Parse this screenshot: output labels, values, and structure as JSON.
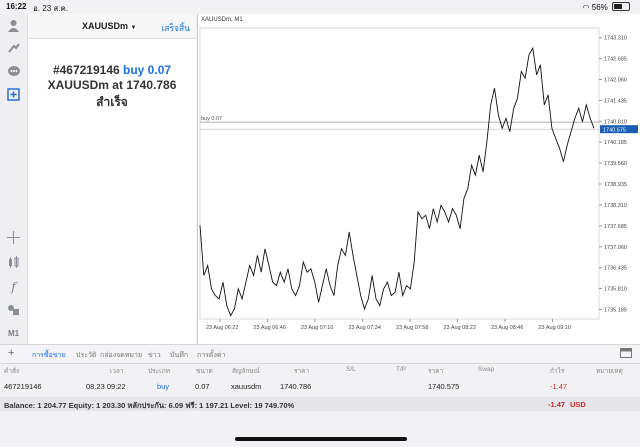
{
  "status_bar": {
    "time": "16:22",
    "date": "อ. 23 ส.ค.",
    "battery": "56%"
  },
  "panel": {
    "symbol": "XAUUSDm",
    "done_label": "เสร็จสิ้น",
    "order_prefix": "#467219146 ",
    "order_action": "buy 0.07",
    "line2_prefix": "XAUUSDm at ",
    "line2_price": "1740.786",
    "line3": "สำเร็จ"
  },
  "left_bar": {
    "timeframe": "M1"
  },
  "chart": {
    "title": "XAUUSDm, M1",
    "order_line_label": "buy 0.07",
    "current_price_label": "1740.575",
    "y_ticks": [
      "1743.310",
      "1742.685",
      "1742.060",
      "1741.435",
      "1740.810",
      "1740.185",
      "1739.560",
      "1738.935",
      "1738.310",
      "1737.685",
      "1737.060",
      "1736.435",
      "1735.810",
      "1735.185"
    ],
    "x_ticks": [
      "23 Aug 06:22",
      "23 Aug 06:46",
      "23 Aug 07:10",
      "23 Aug 07:34",
      "23 Aug 07:58",
      "23 Aug 08:22",
      "23 Aug 08:46",
      "23 Aug 09:10"
    ]
  },
  "chart_data": {
    "type": "line",
    "title": "XAUUSDm, M1",
    "ylim": [
      1734.9,
      1743.6
    ],
    "series": [
      {
        "values": [
          1737.7,
          1736.2,
          1736.5,
          1735.8,
          1735.6,
          1735.5,
          1736.0,
          1735.3,
          1735.0,
          1735.2,
          1735.8,
          1735.5,
          1736.0,
          1736.5,
          1736.2,
          1736.8,
          1736.3,
          1737.0,
          1736.5,
          1736.0,
          1735.9,
          1736.3,
          1736.0,
          1736.4,
          1735.8,
          1735.6,
          1735.9,
          1736.6,
          1736.3,
          1736.4,
          1736.0,
          1735.4,
          1735.9,
          1736.4,
          1735.9,
          1735.6,
          1736.5,
          1737.0,
          1736.8,
          1737.5,
          1736.8,
          1736.2,
          1735.6,
          1735.2,
          1735.5,
          1736.2,
          1735.5,
          1735.3,
          1735.8,
          1736.0,
          1735.6,
          1735.7,
          1736.3,
          1735.6,
          1735.9,
          1735.8,
          1736.6,
          1738.1,
          1737.9,
          1738.0,
          1737.6,
          1738.2,
          1737.8,
          1738.3,
          1738.1,
          1737.8,
          1738.2,
          1738.0,
          1737.6,
          1738.5,
          1738.8,
          1739.5,
          1739.2,
          1739.8,
          1739.3,
          1740.2,
          1741.3,
          1741.8,
          1741.0,
          1740.6,
          1740.9,
          1740.5,
          1741.2,
          1741.5,
          1742.3,
          1742.1,
          1742.8,
          1743.0,
          1742.2,
          1742.5,
          1741.3,
          1741.6,
          1740.6,
          1740.3,
          1740.0,
          1739.6,
          1740.1,
          1740.5,
          1740.9,
          1741.2,
          1740.8,
          1741.3,
          1740.9,
          1740.6
        ]
      }
    ],
    "y_ticks": [
      1743.31,
      1742.685,
      1742.06,
      1741.435,
      1740.81,
      1740.185,
      1739.56,
      1738.935,
      1738.31,
      1737.685,
      1737.06,
      1736.435,
      1735.81,
      1735.185
    ],
    "x_tick_labels": [
      "23 Aug 06:22",
      "23 Aug 06:46",
      "23 Aug 07:10",
      "23 Aug 07:34",
      "23 Aug 07:58",
      "23 Aug 08:22",
      "23 Aug 08:46",
      "23 Aug 09:10"
    ],
    "order_line": {
      "label": "buy 0.07",
      "price": 1740.786
    },
    "current_price": 1740.575,
    "grid": false
  },
  "toolbar": {
    "tabs": [
      "การซื้อขาย",
      "ประวัติ",
      "กล่องจดหมาย",
      "ข่าว",
      "บันทึก",
      "การตั้งค่า"
    ]
  },
  "table": {
    "headers": [
      "คำสั่ง",
      "เวลา",
      "ประเภท",
      "ขนาด",
      "สัญลักษณ์",
      "ราคา",
      "S/L",
      "T/P",
      "ราคา",
      "Swap",
      "กำไร",
      "หมายเหตุ"
    ],
    "row": {
      "ticket": "467219146",
      "time": "08.23 09:22",
      "type": "buy",
      "volume": "0.07",
      "symbol": "xauusdm",
      "open_price": "1740.786",
      "price": "1740.575",
      "profit": "-1.47"
    }
  },
  "balance": {
    "text": "Balance: 1 204.77 Equity: 1 203.30 หลักประกัน: 6.09 ฟรี: 1 197.21 Level: 19 749.70%",
    "profit": "-1.47",
    "currency": "USD"
  },
  "colors": {
    "accent": "#1a73e8",
    "loss": "#d02828",
    "price_tag": "#1a5fb4"
  }
}
